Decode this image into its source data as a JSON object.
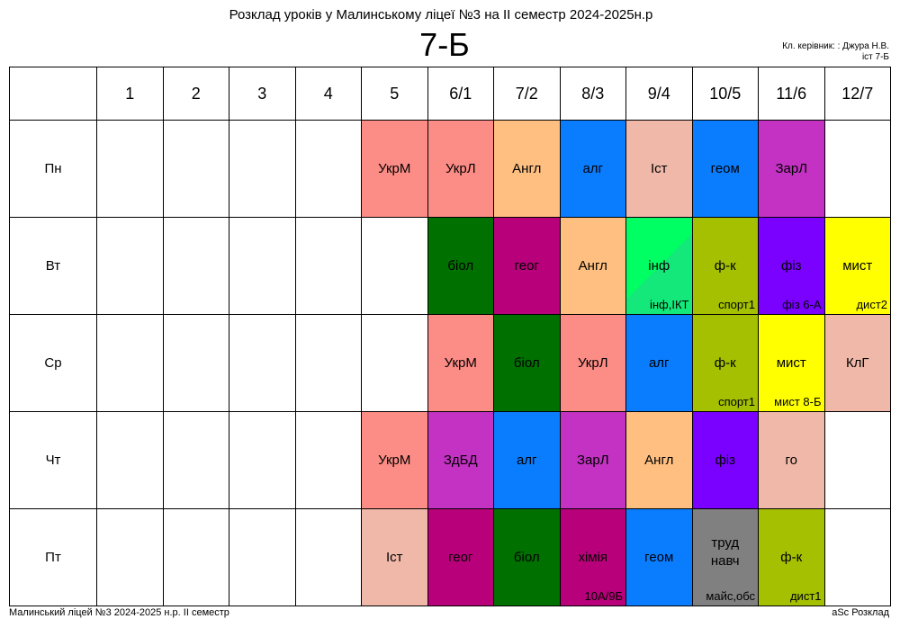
{
  "header": {
    "title": "Розклад уроків у Малинському ліцеї №3 на ІІ семестр 2024-2025н.р",
    "class_name": "7-Б",
    "teacher_line1": "Кл. керівник: : Джура Н.В.",
    "teacher_line2": "іст 7-Б"
  },
  "periods": [
    "1",
    "2",
    "3",
    "4",
    "5",
    "6/1",
    "7/2",
    "8/3",
    "9/4",
    "10/5",
    "11/6",
    "12/7"
  ],
  "days": [
    {
      "name": "Пн",
      "lessons": [
        null,
        null,
        null,
        null,
        {
          "subject": "УкрМ",
          "color": "#fc8c86"
        },
        {
          "subject": "УкрЛ",
          "color": "#fc8c86"
        },
        {
          "subject": "Англ",
          "color": "#ffbf80"
        },
        {
          "subject": "алг",
          "color": "#0a7dff"
        },
        {
          "subject": "Іст",
          "color": "#efb8a8"
        },
        {
          "subject": "геом",
          "color": "#0a7dff"
        },
        {
          "subject": "ЗарЛ",
          "color": "#c332c3"
        },
        null
      ]
    },
    {
      "name": "Вт",
      "lessons": [
        null,
        null,
        null,
        null,
        null,
        {
          "subject": "біол",
          "color": "#007000"
        },
        {
          "subject": "геог",
          "color": "#b8007a"
        },
        {
          "subject": "Англ",
          "color": "#ffbf80"
        },
        {
          "subject": "інф",
          "room": "інф,ІКТ",
          "color": "#00ff63",
          "color2": "#14e87a"
        },
        {
          "subject": "ф-к",
          "room": "спорт1",
          "color": "#a4c000"
        },
        {
          "subject": "фіз",
          "room": "фіз 6-А",
          "color": "#7a00ff"
        },
        {
          "subject": "мист",
          "room": "дист2",
          "color": "#ffff00"
        }
      ]
    },
    {
      "name": "Ср",
      "lessons": [
        null,
        null,
        null,
        null,
        null,
        {
          "subject": "УкрМ",
          "color": "#fc8c86"
        },
        {
          "subject": "біол",
          "color": "#007000"
        },
        {
          "subject": "УкрЛ",
          "color": "#fc8c86"
        },
        {
          "subject": "алг",
          "color": "#0a7dff"
        },
        {
          "subject": "ф-к",
          "room": "спорт1",
          "color": "#a4c000"
        },
        {
          "subject": "мист",
          "room": "мист 8-Б",
          "color": "#ffff00"
        },
        {
          "subject": "КлГ",
          "color": "#efb8a8"
        }
      ]
    },
    {
      "name": "Чт",
      "lessons": [
        null,
        null,
        null,
        null,
        {
          "subject": "УкрМ",
          "color": "#fc8c86"
        },
        {
          "subject": "ЗдБД",
          "color": "#c332c3"
        },
        {
          "subject": "алг",
          "color": "#0a7dff"
        },
        {
          "subject": "ЗарЛ",
          "color": "#c332c3"
        },
        {
          "subject": "Англ",
          "color": "#ffbf80"
        },
        {
          "subject": "фіз",
          "color": "#7a00ff"
        },
        {
          "subject": "го",
          "color": "#efb8a8"
        },
        null
      ]
    },
    {
      "name": "Пт",
      "lessons": [
        null,
        null,
        null,
        null,
        {
          "subject": "Іст",
          "color": "#efb8a8"
        },
        {
          "subject": "геог",
          "color": "#b8007a"
        },
        {
          "subject": "біол",
          "color": "#007000"
        },
        {
          "subject": "хімія",
          "room": "10А/9Б",
          "color": "#b8007a"
        },
        {
          "subject": "геом",
          "color": "#0a7dff"
        },
        {
          "subject": "труд навч",
          "subject_lines": [
            "труд",
            "навч"
          ],
          "room": "майс,обс",
          "color": "#808080"
        },
        {
          "subject": "ф-к",
          "room": "дист1",
          "color": "#a4c000"
        },
        null
      ]
    }
  ],
  "footer": {
    "left": "Малинський ліцей №3  2024-2025 н.р. ІІ семестр",
    "right": "aSc Розклад"
  }
}
